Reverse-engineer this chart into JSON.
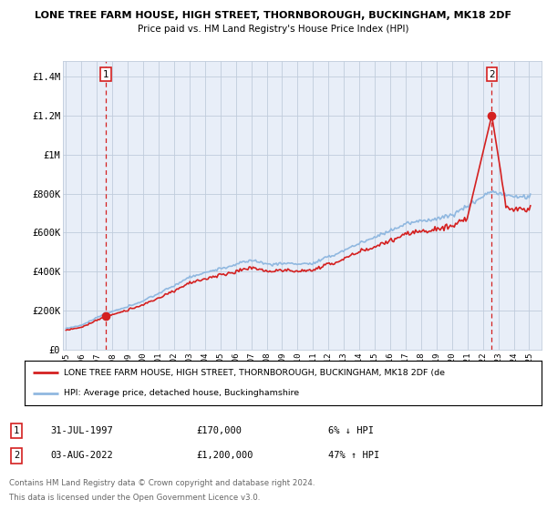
{
  "title1": "LONE TREE FARM HOUSE, HIGH STREET, THORNBOROUGH, BUCKINGHAM, MK18 2DF",
  "title2": "Price paid vs. HM Land Registry's House Price Index (HPI)",
  "ylabel_ticks": [
    "£0",
    "£200K",
    "£400K",
    "£600K",
    "£800K",
    "£1M",
    "£1.2M",
    "£1.4M"
  ],
  "ytick_values": [
    0,
    200000,
    400000,
    600000,
    800000,
    1000000,
    1200000,
    1400000
  ],
  "ylim": [
    0,
    1480000
  ],
  "xlim_start": 1994.8,
  "xlim_end": 2025.8,
  "sale1_year": 1997.58,
  "sale1_price": 170000,
  "sale2_year": 2022.58,
  "sale2_price": 1200000,
  "sale1_label": "1",
  "sale2_label": "2",
  "legend_line1": "LONE TREE FARM HOUSE, HIGH STREET, THORNBOROUGH, BUCKINGHAM, MK18 2DF (de",
  "legend_line2": "HPI: Average price, detached house, Buckinghamshire",
  "table_row1": [
    "1",
    "31-JUL-1997",
    "£170,000",
    "6% ↓ HPI"
  ],
  "table_row2": [
    "2",
    "03-AUG-2022",
    "£1,200,000",
    "47% ↑ HPI"
  ],
  "footer1": "Contains HM Land Registry data © Crown copyright and database right 2024.",
  "footer2": "This data is licensed under the Open Government Licence v3.0.",
  "red_color": "#d42020",
  "blue_color": "#90b8e0",
  "bg_color": "#e8eef8",
  "grid_color": "#c0ccdc",
  "xtick_years": [
    1995,
    1996,
    1997,
    1998,
    1999,
    2000,
    2001,
    2002,
    2003,
    2004,
    2005,
    2006,
    2007,
    2008,
    2009,
    2010,
    2011,
    2012,
    2013,
    2014,
    2015,
    2016,
    2017,
    2018,
    2019,
    2020,
    2021,
    2022,
    2023,
    2024,
    2025
  ]
}
